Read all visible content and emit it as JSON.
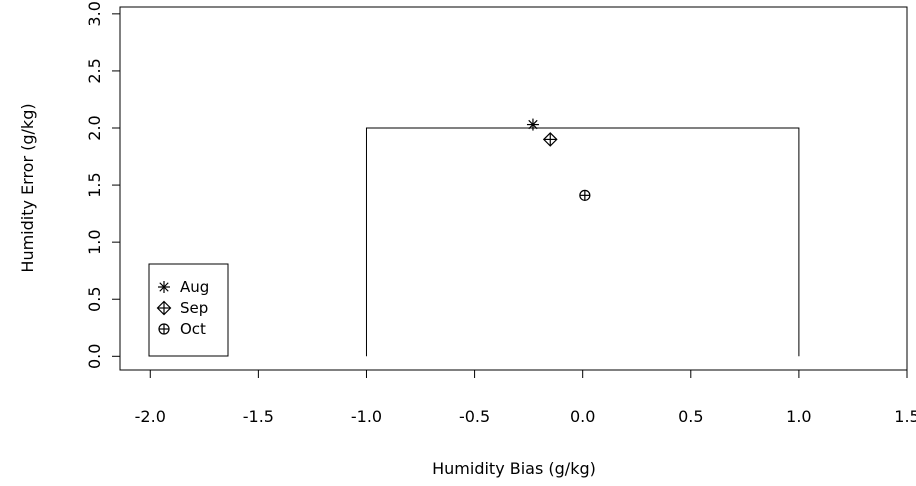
{
  "chart_data": {
    "type": "scatter",
    "title": "",
    "xlabel": "Humidity Bias (g/kg)",
    "ylabel": "Humidity Error (g/kg)",
    "xlim": [
      -2.14,
      1.5
    ],
    "ylim": [
      -0.12,
      3.06
    ],
    "xticks": [
      -2.0,
      -1.5,
      -1.0,
      -0.5,
      0.0,
      0.5,
      1.0,
      1.5
    ],
    "xtick_labels": [
      "-2.0",
      "-1.5",
      "-1.0",
      "-0.5",
      "0.0",
      "0.5",
      "1.0",
      "1.5"
    ],
    "yticks": [
      0.0,
      0.5,
      1.0,
      1.5,
      2.0,
      2.5,
      3.0
    ],
    "ytick_labels": [
      "0.0",
      "0.5",
      "1.0",
      "1.5",
      "2.0",
      "2.5",
      "3.0"
    ],
    "grid": false,
    "legend_position": "bottom-left",
    "target_box": {
      "x": [
        -1.0,
        1.0
      ],
      "y": [
        0.0,
        2.0
      ]
    },
    "series": [
      {
        "name": "Aug",
        "marker": "asterisk",
        "x": [
          -0.23
        ],
        "y": [
          2.03
        ]
      },
      {
        "name": "Sep",
        "marker": "diamond-plus",
        "x": [
          -0.15
        ],
        "y": [
          1.9
        ]
      },
      {
        "name": "Oct",
        "marker": "circle-plus",
        "x": [
          0.01
        ],
        "y": [
          1.41
        ]
      }
    ]
  }
}
